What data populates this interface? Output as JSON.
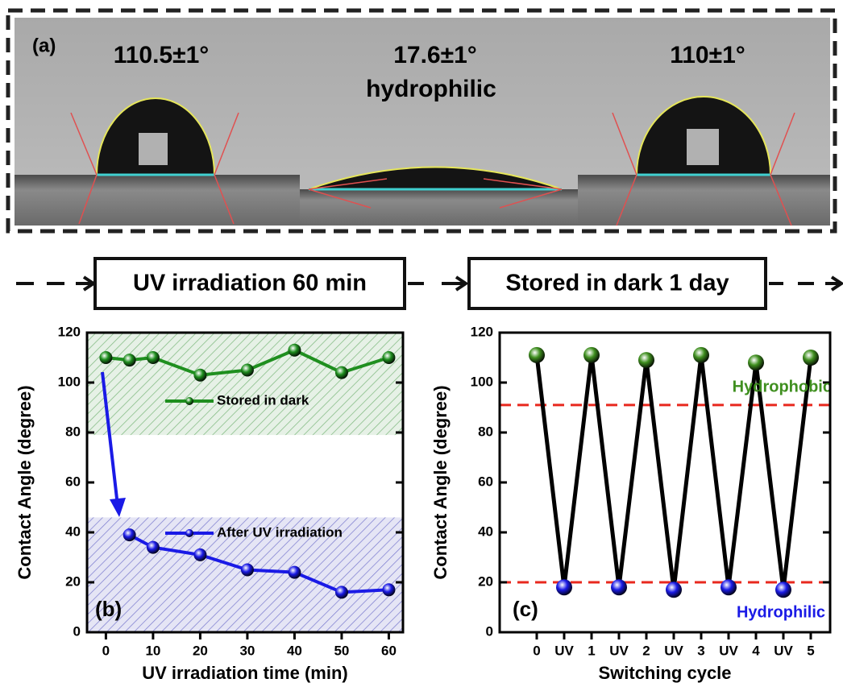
{
  "panel_a": {
    "label": "(a)",
    "images": [
      {
        "angle": "110.5±1°"
      },
      {
        "angle": "17.6±1°",
        "note": "hydrophilic"
      },
      {
        "angle": "110±1°"
      }
    ]
  },
  "steps": [
    "UV irradiation 60 min",
    "Stored in dark 1 day"
  ],
  "chart_data": [
    {
      "type": "line",
      "panel_label": "(b)",
      "x_label": "UV irradiation time (min)",
      "y_label": "Contact Angle (degree)",
      "xlim": [
        -4,
        63
      ],
      "xticks": [
        0,
        10,
        20,
        30,
        40,
        50,
        60
      ],
      "ylim": [
        0,
        120
      ],
      "yticks": [
        0,
        20,
        40,
        60,
        80,
        100,
        120
      ],
      "bands": [
        {
          "from": 79,
          "to": 120,
          "color": "#2e8b2e"
        },
        {
          "from": 0,
          "to": 46,
          "color": "#2a2ab0"
        }
      ],
      "series": [
        {
          "name": "Stored in dark",
          "color": "#1f8f1f",
          "x": [
            0,
            5,
            10,
            20,
            30,
            40,
            50,
            60
          ],
          "values": [
            110,
            109,
            110,
            103,
            105,
            113,
            104,
            110
          ]
        },
        {
          "name": "After UV irradiation",
          "color": "#1a1ae6",
          "x": [
            5,
            10,
            20,
            30,
            40,
            50,
            60
          ],
          "values": [
            39,
            34,
            31,
            25,
            24,
            16,
            17
          ]
        }
      ]
    },
    {
      "type": "line",
      "panel_label": "(c)",
      "x_label": "Switching cycle",
      "y_label": "Contact Angle (degree)",
      "categories": [
        "0",
        "UV",
        "1",
        "UV",
        "2",
        "UV",
        "3",
        "UV",
        "4",
        "UV",
        "5"
      ],
      "ylim": [
        0,
        120
      ],
      "yticks": [
        0,
        20,
        40,
        60,
        80,
        100,
        120
      ],
      "line_color": "#000000",
      "reference_lines": [
        {
          "value": 91,
          "color": "#e8281e"
        },
        {
          "value": 20,
          "color": "#e8281e"
        }
      ],
      "series": [
        {
          "name": "Hydrophobic",
          "color": "#3f8f1f",
          "values": [
            111,
            null,
            111,
            null,
            109,
            null,
            111,
            null,
            108,
            null,
            110
          ]
        },
        {
          "name": "Hydrophilic",
          "color": "#1a1ae6",
          "values": [
            null,
            18,
            null,
            18,
            null,
            17,
            null,
            18,
            null,
            17,
            null
          ]
        }
      ]
    }
  ]
}
